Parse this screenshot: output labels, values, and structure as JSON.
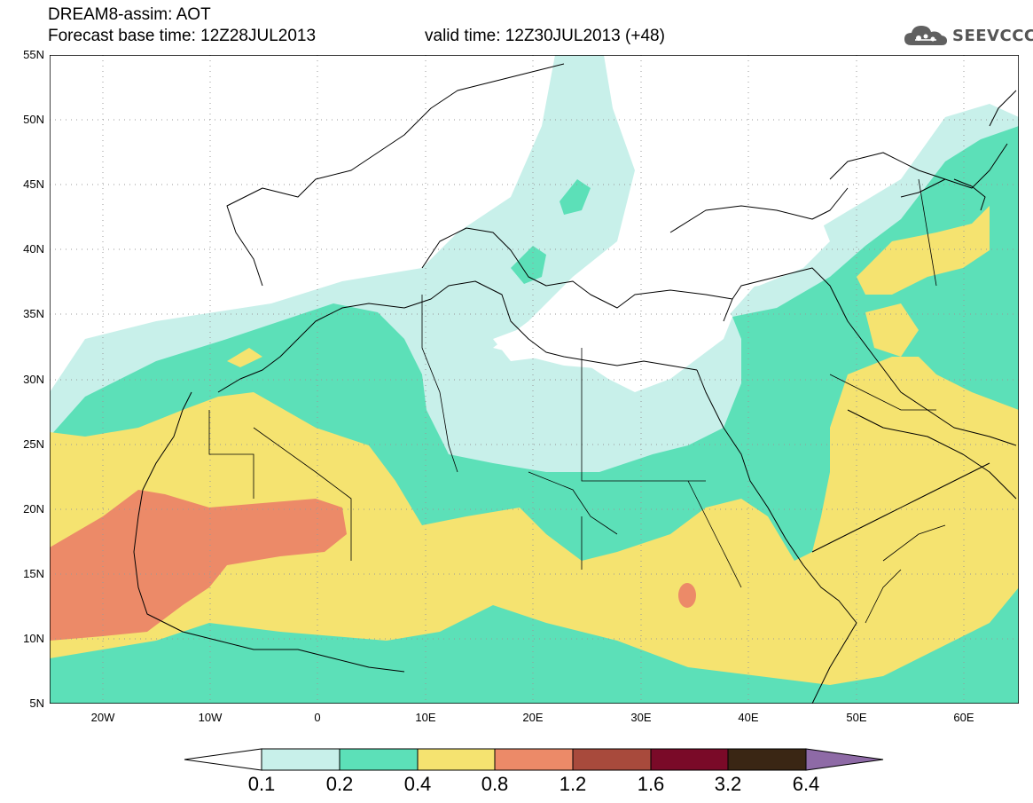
{
  "header": {
    "title_line1": "DREAM8-assim: AOT",
    "title_line2": "Forecast base time: 12Z28JUL2013",
    "valid_time": "valid time: 12Z30JUL2013 (+48)"
  },
  "logo": {
    "icon": "cloud-icon",
    "text": "SEEVCCC"
  },
  "map": {
    "projection": "lat-lon",
    "lon_range": [
      -25,
      65
    ],
    "lat_range": [
      5,
      55
    ],
    "grid": "dotted",
    "lat_labels": [
      "55N",
      "50N",
      "45N",
      "40N",
      "35N",
      "30N",
      "25N",
      "20N",
      "15N",
      "10N",
      "5N"
    ],
    "lon_labels": [
      "20W",
      "10W",
      "0",
      "10E",
      "20E",
      "30E",
      "40E",
      "50E",
      "60E"
    ]
  },
  "colorbar": {
    "levels": [
      "0.1",
      "0.2",
      "0.4",
      "0.8",
      "1.2",
      "1.6",
      "3.2",
      "6.4"
    ],
    "colors": [
      "#c8f0ea",
      "#5ce0b8",
      "#f5e370",
      "#ec8a68",
      "#a84a3c",
      "#7a0a28",
      "#3a2614",
      "#8e6aa6"
    ],
    "below_color": "#ffffff"
  },
  "colors": {
    "band_0_1": "#c8f0ea",
    "band_0_2": "#5ce0b8",
    "band_0_4": "#f5e370",
    "band_0_8": "#ec8a68",
    "coastline": "#000000"
  }
}
